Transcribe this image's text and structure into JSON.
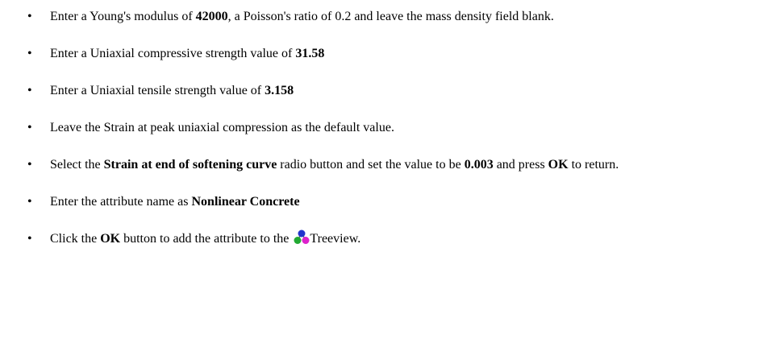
{
  "items": [
    [
      "Enter a Young's modulus of ",
      "42000",
      ", a Poisson's ratio of 0.2 and leave the mass density field blank."
    ],
    [
      "Enter a Uniaxial compressive strength value of ",
      "31.58"
    ],
    [
      "Enter a Uniaxial tensile strength value of ",
      "3.158"
    ],
    [
      "Leave the Strain at peak uniaxial compression as the default value."
    ],
    [
      "Select the ",
      "Strain at end of softening curve",
      " radio button and set the value to be ",
      "0.003",
      " and press ",
      "OK",
      " to return."
    ],
    [
      "Enter the attribute name as ",
      "Nonlinear Concrete"
    ],
    [
      "Click the ",
      "OK",
      " button to add the attribute to the ",
      "Treeview."
    ]
  ]
}
